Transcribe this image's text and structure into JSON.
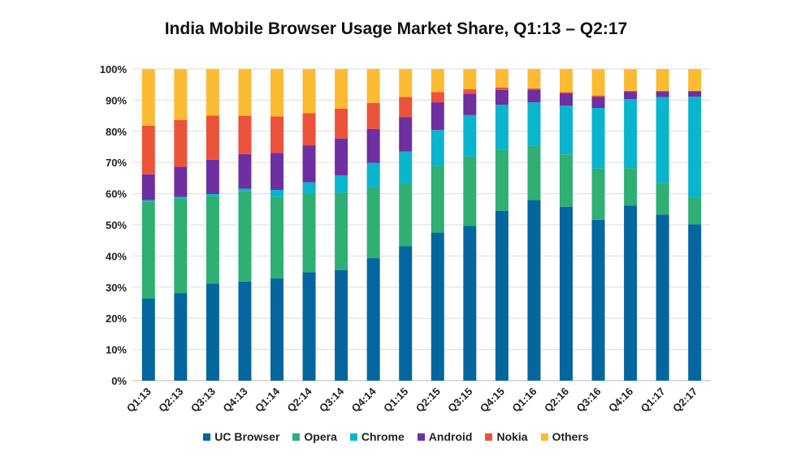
{
  "chart_data": {
    "type": "bar",
    "stacked": true,
    "title": "India Mobile Browser Usage Market Share, Q1:13 – Q2:17",
    "xlabel": "",
    "ylabel": "",
    "ylim": [
      0,
      100
    ],
    "yticks": [
      "0%",
      "10%",
      "20%",
      "30%",
      "40%",
      "50%",
      "60%",
      "70%",
      "80%",
      "90%",
      "100%"
    ],
    "grid": true,
    "legend_position": "bottom",
    "categories": [
      "Q1:13",
      "Q2:13",
      "Q3:13",
      "Q4:13",
      "Q1:14",
      "Q2:14",
      "Q3:14",
      "Q4:14",
      "Q1:15",
      "Q2:15",
      "Q3:15",
      "Q4:15",
      "Q1:16",
      "Q2:16",
      "Q3:16",
      "Q4:16",
      "Q1:17",
      "Q2:17"
    ],
    "series": [
      {
        "name": "UC Browser",
        "color": "#03669f",
        "values": [
          26.3,
          28.1,
          31.2,
          31.8,
          32.8,
          34.8,
          35.5,
          39.3,
          43.1,
          47.5,
          49.6,
          54.5,
          58.0,
          55.8,
          51.6,
          56.2,
          53.3,
          50.2
        ]
      },
      {
        "name": "Opera",
        "color": "#2faf74",
        "values": [
          31.2,
          30.3,
          28.0,
          29.1,
          26.1,
          25.1,
          24.9,
          22.8,
          20.3,
          21.4,
          22.3,
          19.5,
          17.3,
          16.8,
          16.4,
          12.0,
          10.2,
          8.4
        ]
      },
      {
        "name": "Chrome",
        "color": "#09b5cd",
        "values": [
          0.4,
          0.6,
          0.7,
          0.7,
          2.3,
          3.7,
          5.5,
          7.8,
          10.1,
          11.5,
          13.3,
          14.5,
          14.0,
          15.6,
          19.5,
          22.1,
          27.5,
          32.5
        ]
      },
      {
        "name": "Android",
        "color": "#6e2fa1",
        "values": [
          8.3,
          9.6,
          11.0,
          11.1,
          11.9,
          11.9,
          11.8,
          10.9,
          11.0,
          8.9,
          6.9,
          4.8,
          4.1,
          4.0,
          3.6,
          2.5,
          1.8,
          1.8
        ]
      },
      {
        "name": "Nokia",
        "color": "#ec533a",
        "values": [
          15.6,
          15.0,
          14.2,
          12.3,
          11.7,
          10.3,
          9.6,
          8.3,
          6.5,
          3.3,
          1.4,
          0.8,
          0.4,
          0.4,
          0.4,
          0.2,
          0.2,
          0.1
        ]
      },
      {
        "name": "Others",
        "color": "#fdbb33",
        "values": [
          18.2,
          16.4,
          14.9,
          15.0,
          15.2,
          14.2,
          12.7,
          10.9,
          9.0,
          7.4,
          6.5,
          5.9,
          6.2,
          7.4,
          8.5,
          7.0,
          7.0,
          7.0
        ]
      }
    ]
  }
}
